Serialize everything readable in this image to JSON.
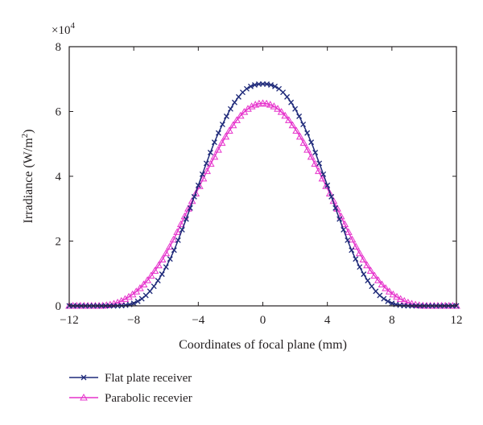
{
  "chart_data": {
    "type": "line",
    "title": "",
    "xlabel": "Coordinates of focal plane (mm)",
    "ylabel_main": "Irradiance (W/m",
    "ylabel_sup": "2",
    "ylabel_close": ")",
    "exponent": {
      "base": "×10",
      "power": "4"
    },
    "xlim": [
      -12,
      12
    ],
    "ylim": [
      0,
      8
    ],
    "xticks": [
      -12,
      -8,
      -4,
      0,
      4,
      8,
      12
    ],
    "xtick_labels": [
      "−12",
      "−8",
      "−4",
      "0",
      "4",
      "8",
      "12"
    ],
    "yticks": [
      0,
      2,
      4,
      6,
      8
    ],
    "ytick_labels": [
      "0",
      "2",
      "4",
      "6",
      "8"
    ],
    "grid": false,
    "legend_position": "bottom-left-below-plot",
    "series": [
      {
        "name": "Flat plate receiver",
        "color": "#1f2a7a",
        "marker": "x",
        "points": [
          [
            -12,
            0
          ],
          [
            -11,
            0
          ],
          [
            -10,
            0
          ],
          [
            -9,
            0
          ],
          [
            -8.5,
            0.02
          ],
          [
            -8,
            0.08
          ],
          [
            -7.5,
            0.22
          ],
          [
            -7,
            0.45
          ],
          [
            -6.5,
            0.78
          ],
          [
            -6,
            1.2
          ],
          [
            -5.5,
            1.72
          ],
          [
            -5,
            2.35
          ],
          [
            -4.5,
            3.02
          ],
          [
            -4,
            3.72
          ],
          [
            -3.5,
            4.4
          ],
          [
            -3,
            5.05
          ],
          [
            -2.5,
            5.6
          ],
          [
            -2,
            6.08
          ],
          [
            -1.5,
            6.45
          ],
          [
            -1,
            6.7
          ],
          [
            -0.5,
            6.82
          ],
          [
            0,
            6.85
          ],
          [
            0.5,
            6.82
          ],
          [
            1,
            6.7
          ],
          [
            1.5,
            6.45
          ],
          [
            2,
            6.08
          ],
          [
            2.5,
            5.6
          ],
          [
            3,
            5.05
          ],
          [
            3.5,
            4.4
          ],
          [
            4,
            3.72
          ],
          [
            4.5,
            3.02
          ],
          [
            5,
            2.35
          ],
          [
            5.5,
            1.72
          ],
          [
            6,
            1.2
          ],
          [
            6.5,
            0.78
          ],
          [
            7,
            0.45
          ],
          [
            7.5,
            0.22
          ],
          [
            8,
            0.08
          ],
          [
            8.5,
            0.02
          ],
          [
            9,
            0
          ],
          [
            10,
            0
          ],
          [
            11,
            0
          ],
          [
            12,
            0
          ]
        ]
      },
      {
        "name": "Parabolic recevier",
        "color": "#e633cc",
        "marker": "triangle",
        "points": [
          [
            -12,
            0
          ],
          [
            -11,
            0
          ],
          [
            -10,
            0
          ],
          [
            -9.5,
            0.03
          ],
          [
            -9,
            0.1
          ],
          [
            -8.5,
            0.22
          ],
          [
            -8,
            0.38
          ],
          [
            -7.5,
            0.6
          ],
          [
            -7,
            0.88
          ],
          [
            -6.5,
            1.22
          ],
          [
            -6,
            1.62
          ],
          [
            -5.5,
            2.08
          ],
          [
            -5,
            2.6
          ],
          [
            -4.5,
            3.12
          ],
          [
            -4,
            3.62
          ],
          [
            -3.5,
            4.12
          ],
          [
            -3,
            4.6
          ],
          [
            -2.5,
            5.06
          ],
          [
            -2,
            5.46
          ],
          [
            -1.5,
            5.8
          ],
          [
            -1,
            6.05
          ],
          [
            -0.5,
            6.2
          ],
          [
            0,
            6.25
          ],
          [
            0.5,
            6.2
          ],
          [
            1,
            6.05
          ],
          [
            1.5,
            5.8
          ],
          [
            2,
            5.46
          ],
          [
            2.5,
            5.06
          ],
          [
            3,
            4.6
          ],
          [
            3.5,
            4.12
          ],
          [
            4,
            3.62
          ],
          [
            4.5,
            3.12
          ],
          [
            5,
            2.6
          ],
          [
            5.5,
            2.08
          ],
          [
            6,
            1.62
          ],
          [
            6.5,
            1.22
          ],
          [
            7,
            0.88
          ],
          [
            7.5,
            0.6
          ],
          [
            8,
            0.38
          ],
          [
            8.5,
            0.22
          ],
          [
            9,
            0.1
          ],
          [
            9.5,
            0.03
          ],
          [
            10,
            0
          ],
          [
            11,
            0
          ],
          [
            12,
            0
          ]
        ]
      }
    ]
  }
}
